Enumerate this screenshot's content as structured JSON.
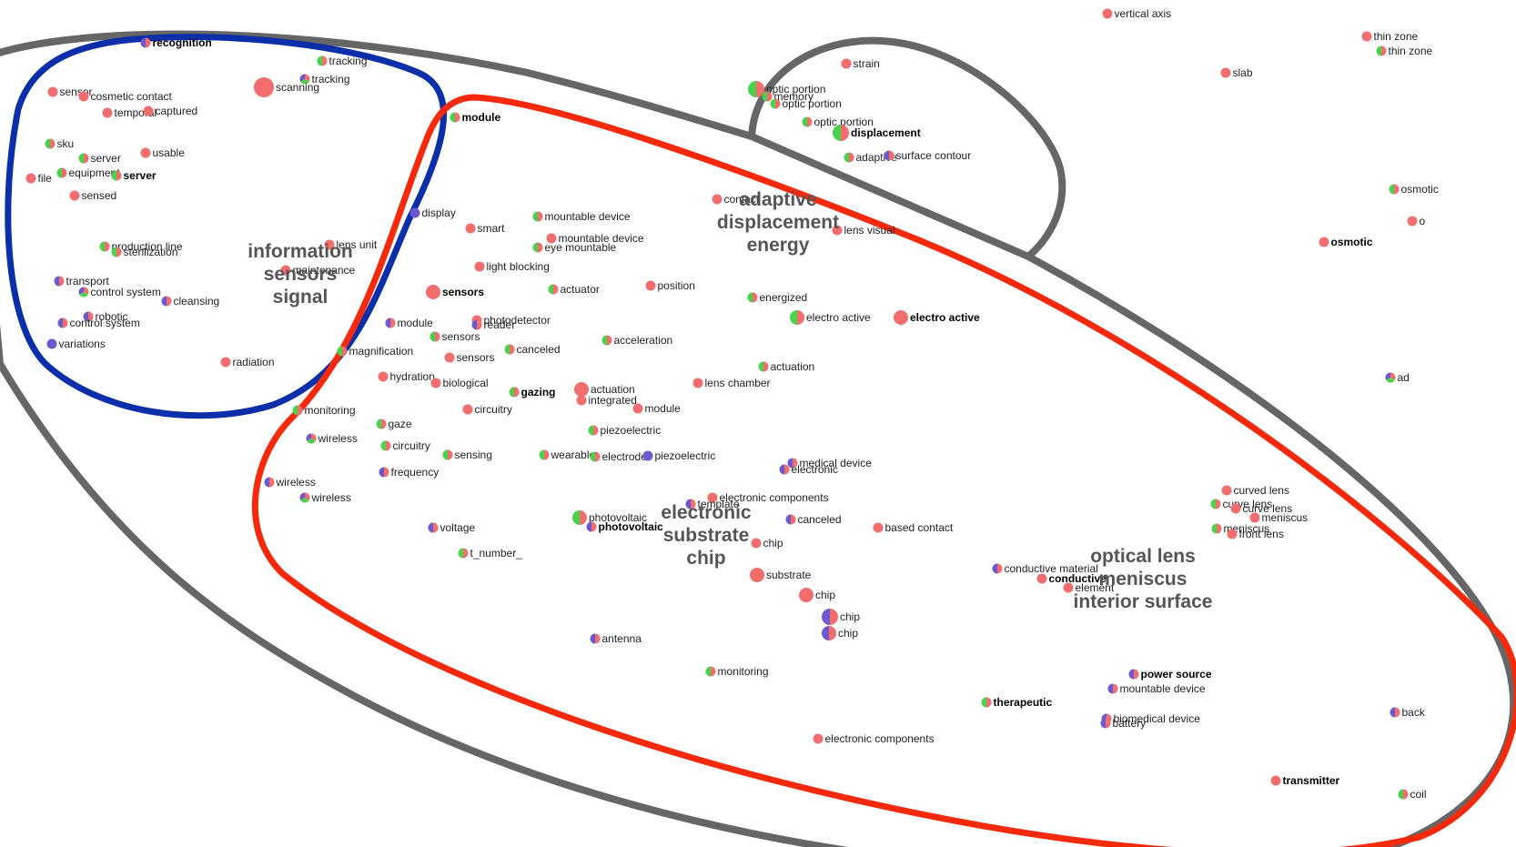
{
  "colors": {
    "outer_cluster": "#666666",
    "blue_cluster": "#0a2fa8",
    "red_cluster": "#f52a0c",
    "gray_small_cluster": "#666666",
    "node_red": "#f26d6d",
    "node_green": "#4cd14c",
    "node_blue": "#6a5acd"
  },
  "clusters": [
    {
      "id": "blue",
      "labels": [
        "information",
        "sensors",
        "signal"
      ]
    },
    {
      "id": "gray-small",
      "labels": [
        "adaptive",
        "displacement",
        "energy"
      ]
    },
    {
      "id": "red",
      "labels": [
        "electronic",
        "substrate",
        "chip"
      ]
    },
    {
      "id": "outer",
      "labels": [
        "optical lens",
        "meniscus",
        "interior surface"
      ]
    }
  ],
  "nodes": [
    {
      "label": "recognition",
      "mix": "rb",
      "bold": true
    },
    {
      "label": "tracking",
      "mix": "rg"
    },
    {
      "label": "tracking",
      "mix": "rgb"
    },
    {
      "label": "scanning",
      "mix": "r",
      "big": true
    },
    {
      "label": "sensor",
      "mix": "r"
    },
    {
      "label": "cosmetic contact",
      "mix": "r"
    },
    {
      "label": "temporal",
      "mix": "r"
    },
    {
      "label": "captured",
      "mix": "r"
    },
    {
      "label": "sku",
      "mix": "rg"
    },
    {
      "label": "usable",
      "mix": "r"
    },
    {
      "label": "server",
      "mix": "rg"
    },
    {
      "label": "file",
      "mix": "r"
    },
    {
      "label": "equipment",
      "mix": "rg"
    },
    {
      "label": "server",
      "mix": "rg",
      "bold": true
    },
    {
      "label": "sensed",
      "mix": "r"
    },
    {
      "label": "production line",
      "mix": "rg"
    },
    {
      "label": "sterilization",
      "mix": "rg"
    },
    {
      "label": "transport",
      "mix": "rb"
    },
    {
      "label": "control system",
      "mix": "rgb"
    },
    {
      "label": "cleansing",
      "mix": "rb"
    },
    {
      "label": "robotic",
      "mix": "rb"
    },
    {
      "label": "control system",
      "mix": "rb"
    },
    {
      "label": "variations",
      "mix": "b"
    },
    {
      "label": "radiation",
      "mix": "r"
    },
    {
      "label": "lens unit",
      "mix": "r"
    },
    {
      "label": "maintenance",
      "mix": "r"
    },
    {
      "label": "module",
      "mix": "rg",
      "bold": true
    },
    {
      "label": "display",
      "mix": "b"
    },
    {
      "label": "smart",
      "mix": "r"
    },
    {
      "label": "mountable device",
      "mix": "rg"
    },
    {
      "label": "mountable device",
      "mix": "r"
    },
    {
      "label": "eye mountable",
      "mix": "rg"
    },
    {
      "label": "light blocking",
      "mix": "r"
    },
    {
      "label": "sensors",
      "mix": "r",
      "bold": true
    },
    {
      "label": "actuator",
      "mix": "rg"
    },
    {
      "label": "position",
      "mix": "r"
    },
    {
      "label": "energized",
      "mix": "rg"
    },
    {
      "label": "module",
      "mix": "rb"
    },
    {
      "label": "photodetector",
      "mix": "r"
    },
    {
      "label": "reader",
      "mix": "rb"
    },
    {
      "label": "sensors",
      "mix": "rg"
    },
    {
      "label": "sensors",
      "mix": "r"
    },
    {
      "label": "magnification",
      "mix": "rg"
    },
    {
      "label": "canceled",
      "mix": "rg"
    },
    {
      "label": "acceleration",
      "mix": "rg"
    },
    {
      "label": "hydration",
      "mix": "r"
    },
    {
      "label": "biological",
      "mix": "r"
    },
    {
      "label": "gazing",
      "mix": "rg",
      "bold": true
    },
    {
      "label": "actuation",
      "mix": "r"
    },
    {
      "label": "integrated",
      "mix": "r"
    },
    {
      "label": "module",
      "mix": "r"
    },
    {
      "label": "circuitry",
      "mix": "r"
    },
    {
      "label": "lens chamber",
      "mix": "r"
    },
    {
      "label": "actuation",
      "mix": "rg"
    },
    {
      "label": "electro active",
      "mix": "rg"
    },
    {
      "label": "electro active",
      "mix": "r",
      "bold": true
    },
    {
      "label": "monitoring",
      "mix": "rg"
    },
    {
      "label": "gaze",
      "mix": "rg"
    },
    {
      "label": "wireless",
      "mix": "rgb"
    },
    {
      "label": "circuitry",
      "mix": "rg"
    },
    {
      "label": "piezoelectric",
      "mix": "rg"
    },
    {
      "label": "sensing",
      "mix": "rg"
    },
    {
      "label": "wearable",
      "mix": "rg"
    },
    {
      "label": "electrode",
      "mix": "rg"
    },
    {
      "label": "piezoelectric",
      "mix": "b"
    },
    {
      "label": "wireless",
      "mix": "rb"
    },
    {
      "label": "wireless",
      "mix": "rgb"
    },
    {
      "label": "frequency",
      "mix": "rb"
    },
    {
      "label": "medical device",
      "mix": "rb"
    },
    {
      "label": "electronic",
      "mix": "rb"
    },
    {
      "label": "electronic components",
      "mix": "r"
    },
    {
      "label": "template",
      "mix": "rb"
    },
    {
      "label": "photovoltaic",
      "mix": "rg"
    },
    {
      "label": "photovoltaic",
      "mix": "rb",
      "bold": true
    },
    {
      "label": "canceled",
      "mix": "rb"
    },
    {
      "label": "based contact",
      "mix": "r"
    },
    {
      "label": "voltage",
      "mix": "rb"
    },
    {
      "label": "t_number_",
      "mix": "rg"
    },
    {
      "label": "chip",
      "mix": "r"
    },
    {
      "label": "substrate",
      "mix": "r"
    },
    {
      "label": "chip",
      "mix": "r"
    },
    {
      "label": "chip",
      "mix": "rb"
    },
    {
      "label": "chip",
      "mix": "rb"
    },
    {
      "label": "antenna",
      "mix": "rb"
    },
    {
      "label": "monitoring",
      "mix": "rg"
    },
    {
      "label": "electronic components",
      "mix": "r"
    },
    {
      "label": "strain",
      "mix": "r"
    },
    {
      "label": "optic portion",
      "mix": "rg"
    },
    {
      "label": "memory",
      "mix": "rg"
    },
    {
      "label": "optic portion",
      "mix": "rg"
    },
    {
      "label": "optic portion",
      "mix": "rg"
    },
    {
      "label": "displacement",
      "mix": "rg",
      "bold": true
    },
    {
      "label": "adaptive",
      "mix": "rg"
    },
    {
      "label": "surface contour",
      "mix": "rb"
    },
    {
      "label": "contact",
      "mix": "r"
    },
    {
      "label": "lens visual",
      "mix": "r"
    },
    {
      "label": "conductive material",
      "mix": "rb"
    },
    {
      "label": "conductive",
      "mix": "r",
      "bold": true
    },
    {
      "label": "element",
      "mix": "r"
    },
    {
      "label": "power source",
      "mix": "rb",
      "bold": true
    },
    {
      "label": "mountable device",
      "mix": "rb"
    },
    {
      "label": "therapeutic",
      "mix": "rg",
      "bold": true
    },
    {
      "label": "biomedical device",
      "mix": "rb"
    },
    {
      "label": "battery",
      "mix": "rb"
    },
    {
      "label": "transmitter",
      "mix": "r",
      "bold": true
    },
    {
      "label": "curved lens",
      "mix": "r"
    },
    {
      "label": "curve lens",
      "mix": "rg"
    },
    {
      "label": "curve lens",
      "mix": "r"
    },
    {
      "label": "meniscus",
      "mix": "r"
    },
    {
      "label": "meniscus",
      "mix": "rg"
    },
    {
      "label": "front lens",
      "mix": "r"
    },
    {
      "label": "vertical axis",
      "mix": "r"
    },
    {
      "label": "thin zone",
      "mix": "r"
    },
    {
      "label": "thin zone",
      "mix": "rg"
    },
    {
      "label": "slab",
      "mix": "r"
    },
    {
      "label": "osmotic",
      "mix": "rg"
    },
    {
      "label": "osmotic",
      "mix": "r",
      "bold": true
    },
    {
      "label": "o",
      "mix": "r"
    },
    {
      "label": "ad",
      "mix": "rgb"
    },
    {
      "label": "back",
      "mix": "rb"
    },
    {
      "label": "coil",
      "mix": "rg"
    }
  ]
}
